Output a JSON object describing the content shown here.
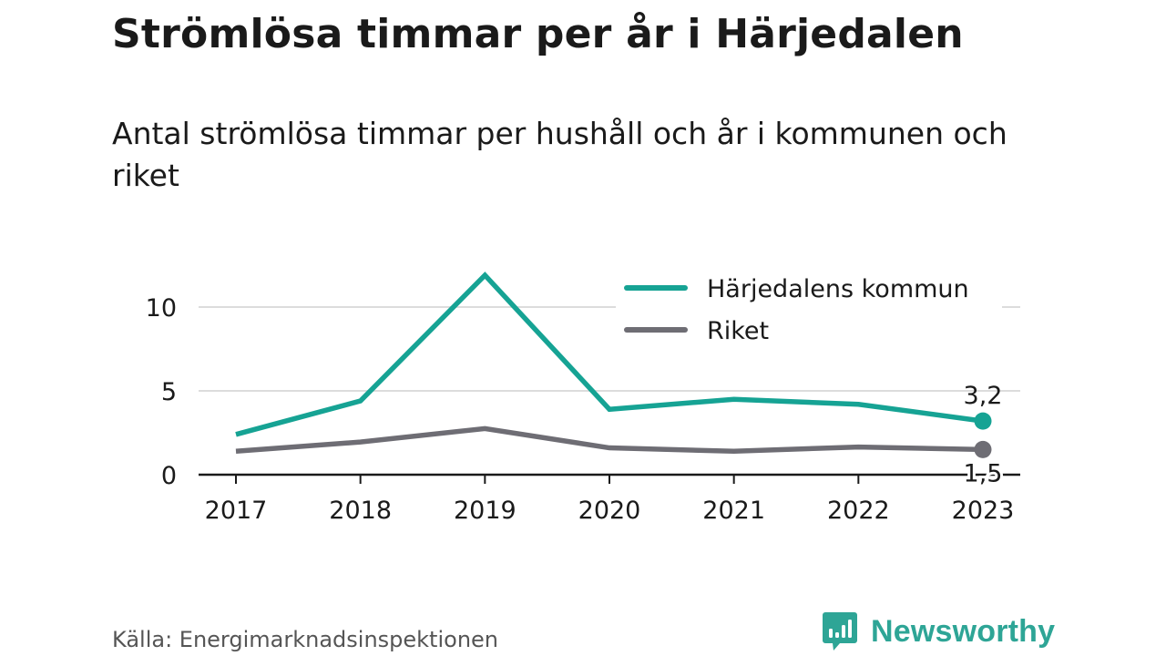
{
  "title": "Strömlösa timmar per år i Härjedalen",
  "subtitle": "Antal strömlösa timmar per hushåll och år i kommunen och riket",
  "source": "Källa: Energimarknadsinspektionen",
  "brand": {
    "name": "Newsworthy",
    "color": "#2ea596",
    "icon": "newsworthy-chart-bubble-icon"
  },
  "chart_data": {
    "type": "line",
    "x": [
      "2017",
      "2018",
      "2019",
      "2020",
      "2021",
      "2022",
      "2023"
    ],
    "series": [
      {
        "name": "Härjedalens kommun",
        "color": "#16a394",
        "values": [
          2.4,
          4.4,
          11.9,
          3.9,
          4.5,
          4.2,
          3.2
        ],
        "end_label": "3,2"
      },
      {
        "name": "Riket",
        "color": "#6e6d74",
        "values": [
          1.4,
          1.95,
          2.75,
          1.6,
          1.4,
          1.65,
          1.5
        ],
        "end_label": "1,5"
      }
    ],
    "y_ticks": [
      0,
      5,
      10
    ],
    "y_tick_labels": [
      "0",
      "5",
      "10"
    ],
    "ylim": [
      0,
      12
    ],
    "grid": true,
    "legend_position": "top-right"
  }
}
